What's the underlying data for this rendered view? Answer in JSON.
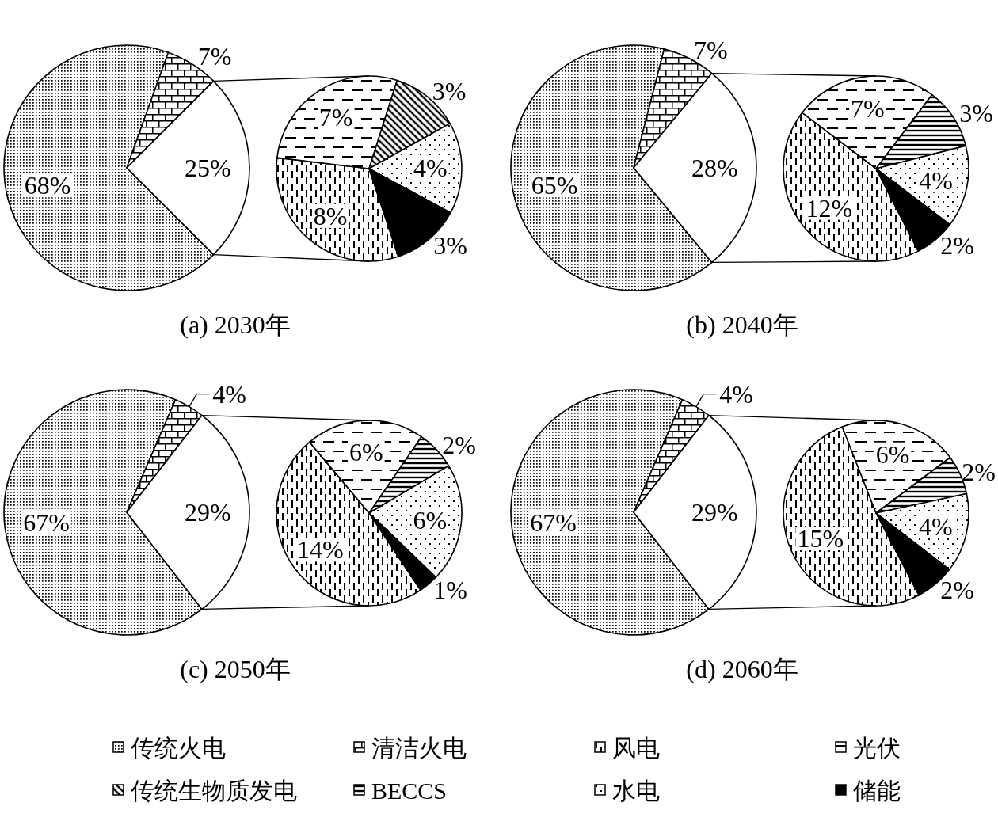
{
  "chart_data": {
    "type": "pie",
    "legend": "bottom",
    "categories": [
      "传统火电",
      "清洁火电",
      "风电",
      "光伏",
      "传统生物质发电",
      "BECCS",
      "水电",
      "储能",
      null
    ],
    "colors": [
      "#000000",
      "#000000",
      "#000000",
      "#000000",
      "#000000",
      "#000000",
      "#000000",
      "#000000",
      "#ffffff"
    ],
    "series": [
      {
        "values": [
          68,
          7,
          null,
          null,
          null,
          null,
          null,
          null,
          25
        ],
        "value_labels": [
          "68%",
          "7%",
          null,
          null,
          null,
          null,
          null,
          null,
          "25%"
        ]
      },
      {
        "values": [
          null,
          null,
          8,
          7,
          3,
          null,
          4,
          3,
          null
        ],
        "value_labels": [
          null,
          null,
          "8%",
          "7%",
          "3%",
          null,
          "4%",
          "3%",
          null
        ]
      },
      {
        "values": [
          65,
          7,
          null,
          null,
          null,
          null,
          null,
          null,
          28
        ],
        "value_labels": [
          "65%",
          "7%",
          null,
          null,
          null,
          null,
          null,
          null,
          "28%"
        ]
      },
      {
        "values": [
          null,
          null,
          12,
          7,
          null,
          3,
          4,
          2,
          null
        ],
        "value_labels": [
          null,
          null,
          "12%",
          "7%",
          null,
          "3%",
          "4%",
          "2%",
          null
        ]
      },
      {
        "values": [
          67,
          4,
          null,
          null,
          null,
          null,
          null,
          null,
          29
        ],
        "value_labels": [
          "67%",
          "4%",
          null,
          null,
          null,
          null,
          null,
          null,
          "29%"
        ]
      },
      {
        "values": [
          null,
          null,
          14,
          6,
          null,
          2,
          6,
          1,
          null
        ],
        "value_labels": [
          null,
          null,
          "14%",
          "6%",
          null,
          "2%",
          "6%",
          "1%",
          null
        ]
      },
      {
        "values": [
          67,
          4,
          null,
          null,
          null,
          null,
          null,
          null,
          29
        ],
        "value_labels": [
          "67%",
          "4%",
          null,
          null,
          null,
          null,
          null,
          null,
          "29%"
        ]
      },
      {
        "values": [
          null,
          null,
          15,
          6,
          null,
          2,
          4,
          2,
          null
        ],
        "value_labels": [
          null,
          null,
          "15%",
          "6%",
          null,
          "2%",
          "4%",
          "2%",
          null
        ]
      }
    ],
    "annotations": [
      "(a) 2030年",
      "(b) 2040年",
      "(c) 2050年",
      "(d) 2060年"
    ]
  }
}
